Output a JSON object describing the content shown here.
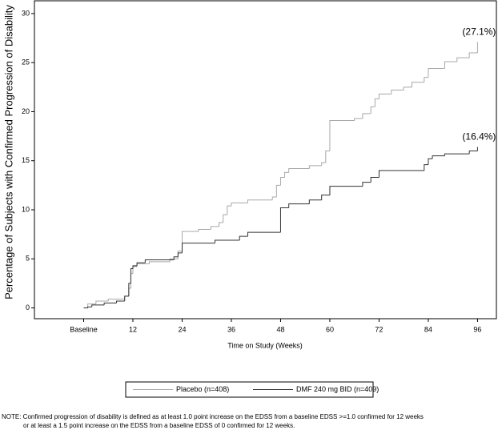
{
  "chart_data": {
    "type": "step",
    "x_label": "Time on Study (Weeks)",
    "y_label": "Percentage of Subjects with Confirmed Progression of Disability",
    "xlim": [
      -12,
      100.6
    ],
    "ylim": [
      -1.1,
      31.3
    ],
    "xticks": [
      {
        "value": 0,
        "label": "Baseline"
      },
      12,
      24,
      36,
      48,
      60,
      72,
      84,
      96
    ],
    "yticks": [
      0,
      5,
      10,
      15,
      20,
      25,
      30
    ],
    "series": [
      {
        "name": "Placebo (n=408)",
        "color": "#a8a8a8",
        "x": [
          0,
          1,
          3,
          6,
          10,
          11,
          11.5,
          12,
          13,
          16,
          21,
          23,
          24,
          28,
          31,
          33,
          34,
          35,
          36,
          40,
          46,
          47,
          48,
          49,
          50,
          55,
          58,
          59,
          60,
          66,
          68,
          70,
          71,
          72,
          75,
          78,
          80,
          83,
          84,
          88,
          91,
          94,
          96
        ],
        "values": [
          0,
          0.4,
          0.7,
          0.9,
          1.2,
          2,
          3.5,
          4.2,
          4.5,
          4.7,
          5.0,
          5.8,
          7.8,
          8.0,
          8.3,
          8.7,
          9.5,
          10.4,
          10.7,
          11.0,
          11.3,
          12.5,
          13.3,
          13.8,
          14.2,
          14.5,
          14.8,
          16,
          19.1,
          19.3,
          19.8,
          20.5,
          21.3,
          21.8,
          22.2,
          22.5,
          23,
          23.5,
          24.4,
          25.1,
          25.5,
          26.0,
          27.1
        ]
      },
      {
        "name": "DMF 240 mg BID (n=409)",
        "color": "#333333",
        "x": [
          0,
          1,
          2,
          5,
          8,
          10,
          11,
          11.5,
          12,
          13,
          15,
          22,
          23,
          24,
          32,
          38,
          40,
          48,
          50,
          55,
          58,
          60,
          68,
          70,
          72,
          83,
          84,
          85,
          88,
          94,
          96
        ],
        "values": [
          0,
          0.1,
          0.3,
          0.5,
          0.7,
          1.2,
          2.5,
          4.0,
          4.3,
          4.6,
          4.9,
          5.2,
          5.6,
          6.6,
          6.9,
          7.3,
          7.7,
          10.2,
          10.6,
          11.0,
          11.5,
          12.4,
          12.8,
          13.3,
          14.0,
          14.6,
          15.2,
          15.5,
          15.7,
          16.0,
          16.4
        ]
      }
    ],
    "annotations": [
      {
        "text": "(27.1%)",
        "x": 96,
        "y": 27.1
      },
      {
        "text": "(16.4%)",
        "x": 96,
        "y": 16.4
      }
    ],
    "note": [
      "NOTE: Confirmed progression of disability is defined as at least 1.0 point increase on the EDSS from a baseline EDSS >=1.0 confirmed for 12 weeks",
      "or at least a 1.5 point increase on the EDSS from a baseline EDSS of 0 confirmed for 12 weeks."
    ]
  }
}
